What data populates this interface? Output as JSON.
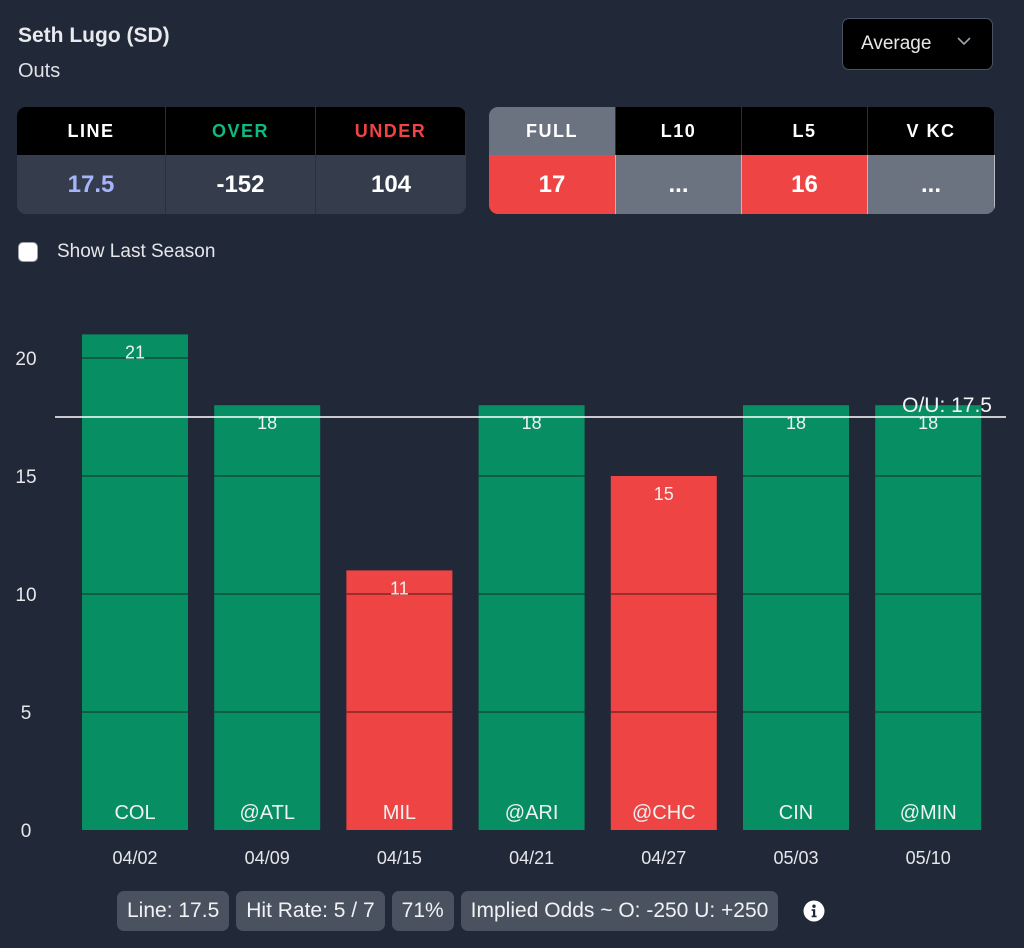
{
  "header": {
    "player": "Seth Lugo (SD)",
    "stat": "Outs",
    "view_select": {
      "selected": "Average"
    }
  },
  "odds_table": {
    "headers": [
      {
        "label": "LINE",
        "color": "#ffffff"
      },
      {
        "label": "OVER",
        "color": "#10b981"
      },
      {
        "label": "UNDER",
        "color": "#ef4444"
      }
    ],
    "values": [
      {
        "value": "17.5",
        "color": "#a5b4fc"
      },
      {
        "value": "-152",
        "color": "#ffffff"
      },
      {
        "value": "104",
        "color": "#ffffff"
      }
    ]
  },
  "averages_table": {
    "headers": [
      {
        "label": "FULL",
        "active": true
      },
      {
        "label": "L10",
        "active": false
      },
      {
        "label": "L5",
        "active": false
      },
      {
        "label": "V KC",
        "active": false
      }
    ],
    "values": [
      {
        "value": "17",
        "status": "red"
      },
      {
        "value": "...",
        "status": "gray"
      },
      {
        "value": "16",
        "status": "red"
      },
      {
        "value": "...",
        "status": "gray"
      }
    ]
  },
  "show_last_season": {
    "label": "Show Last Season",
    "checked": false
  },
  "colors": {
    "over": "#078f63",
    "under": "#ef4444",
    "background": "#212837"
  },
  "chart_data": {
    "type": "bar",
    "title": "",
    "xlabel": "",
    "ylabel": "",
    "ylim": [
      0,
      20
    ],
    "yticks": [
      0,
      5,
      10,
      15,
      20
    ],
    "grid": true,
    "categories": [
      "04/02",
      "04/09",
      "04/15",
      "04/21",
      "04/27",
      "05/03",
      "05/10"
    ],
    "opponents": [
      "COL",
      "@ATL",
      "MIL",
      "@ARI",
      "@CHC",
      "CIN",
      "@MIN"
    ],
    "values": [
      21,
      18,
      11,
      18,
      15,
      18,
      18
    ],
    "line": {
      "value": 17.5,
      "label": "O/U: 17.5"
    }
  },
  "summary": {
    "line": "Line: 17.5",
    "hit_rate": "Hit Rate: 5 / 7",
    "percent": "71%",
    "implied_odds": "Implied Odds ~ O: -250 U: +250"
  }
}
